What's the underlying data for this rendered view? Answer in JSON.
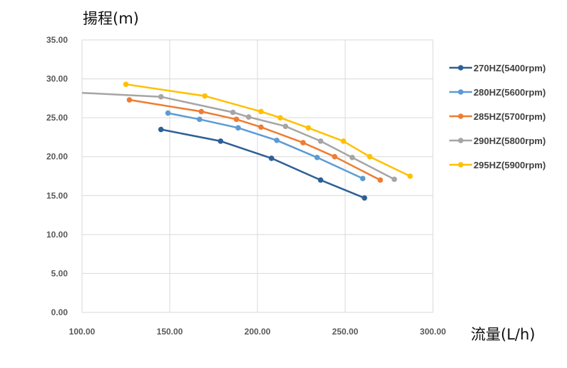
{
  "chart_data": {
    "type": "line",
    "ylabel": "揚程(m)",
    "xlabel": "流量(L/h)",
    "xlim": [
      100,
      300
    ],
    "ylim": [
      0,
      35
    ],
    "xticks": [
      "100.00",
      "150.00",
      "200.00",
      "250.00",
      "300.00"
    ],
    "yticks": [
      "0.00",
      "5.00",
      "10.00",
      "15.00",
      "20.00",
      "25.00",
      "30.00",
      "35.00"
    ],
    "grid": true,
    "legend_position": "right",
    "series": [
      {
        "name": "270HZ(5400rpm)",
        "color": "#2e5f95",
        "points": [
          [
            145,
            23.5
          ],
          [
            179,
            22.0
          ],
          [
            208,
            19.8
          ],
          [
            236,
            17.0
          ],
          [
            261,
            14.7
          ]
        ]
      },
      {
        "name": "280HZ(5600rpm)",
        "color": "#5b9bd5",
        "points": [
          [
            149,
            25.6
          ],
          [
            167,
            24.8
          ],
          [
            189,
            23.7
          ],
          [
            211,
            22.1
          ],
          [
            234,
            19.9
          ],
          [
            260,
            17.2
          ]
        ]
      },
      {
        "name": "285HZ(5700rpm)",
        "color": "#ed7d31",
        "points": [
          [
            127,
            27.3
          ],
          [
            168,
            25.8
          ],
          [
            188,
            24.8
          ],
          [
            202,
            23.8
          ],
          [
            226,
            21.8
          ],
          [
            244,
            20.0
          ],
          [
            270,
            17.0
          ]
        ]
      },
      {
        "name": "290HZ(5800rpm)",
        "color": "#a5a5a5",
        "points": [
          [
            100,
            28.2
          ],
          [
            145,
            27.7
          ],
          [
            186,
            25.7
          ],
          [
            195,
            25.1
          ],
          [
            216,
            23.9
          ],
          [
            236,
            22.0
          ],
          [
            254,
            19.9
          ],
          [
            278,
            17.1
          ]
        ]
      },
      {
        "name": "295HZ(5900rpm)",
        "color": "#ffc000",
        "points": [
          [
            125,
            29.3
          ],
          [
            170,
            27.8
          ],
          [
            202,
            25.8
          ],
          [
            213,
            25.0
          ],
          [
            229,
            23.7
          ],
          [
            249,
            22.0
          ],
          [
            264,
            20.0
          ],
          [
            287,
            17.5
          ]
        ]
      }
    ]
  }
}
